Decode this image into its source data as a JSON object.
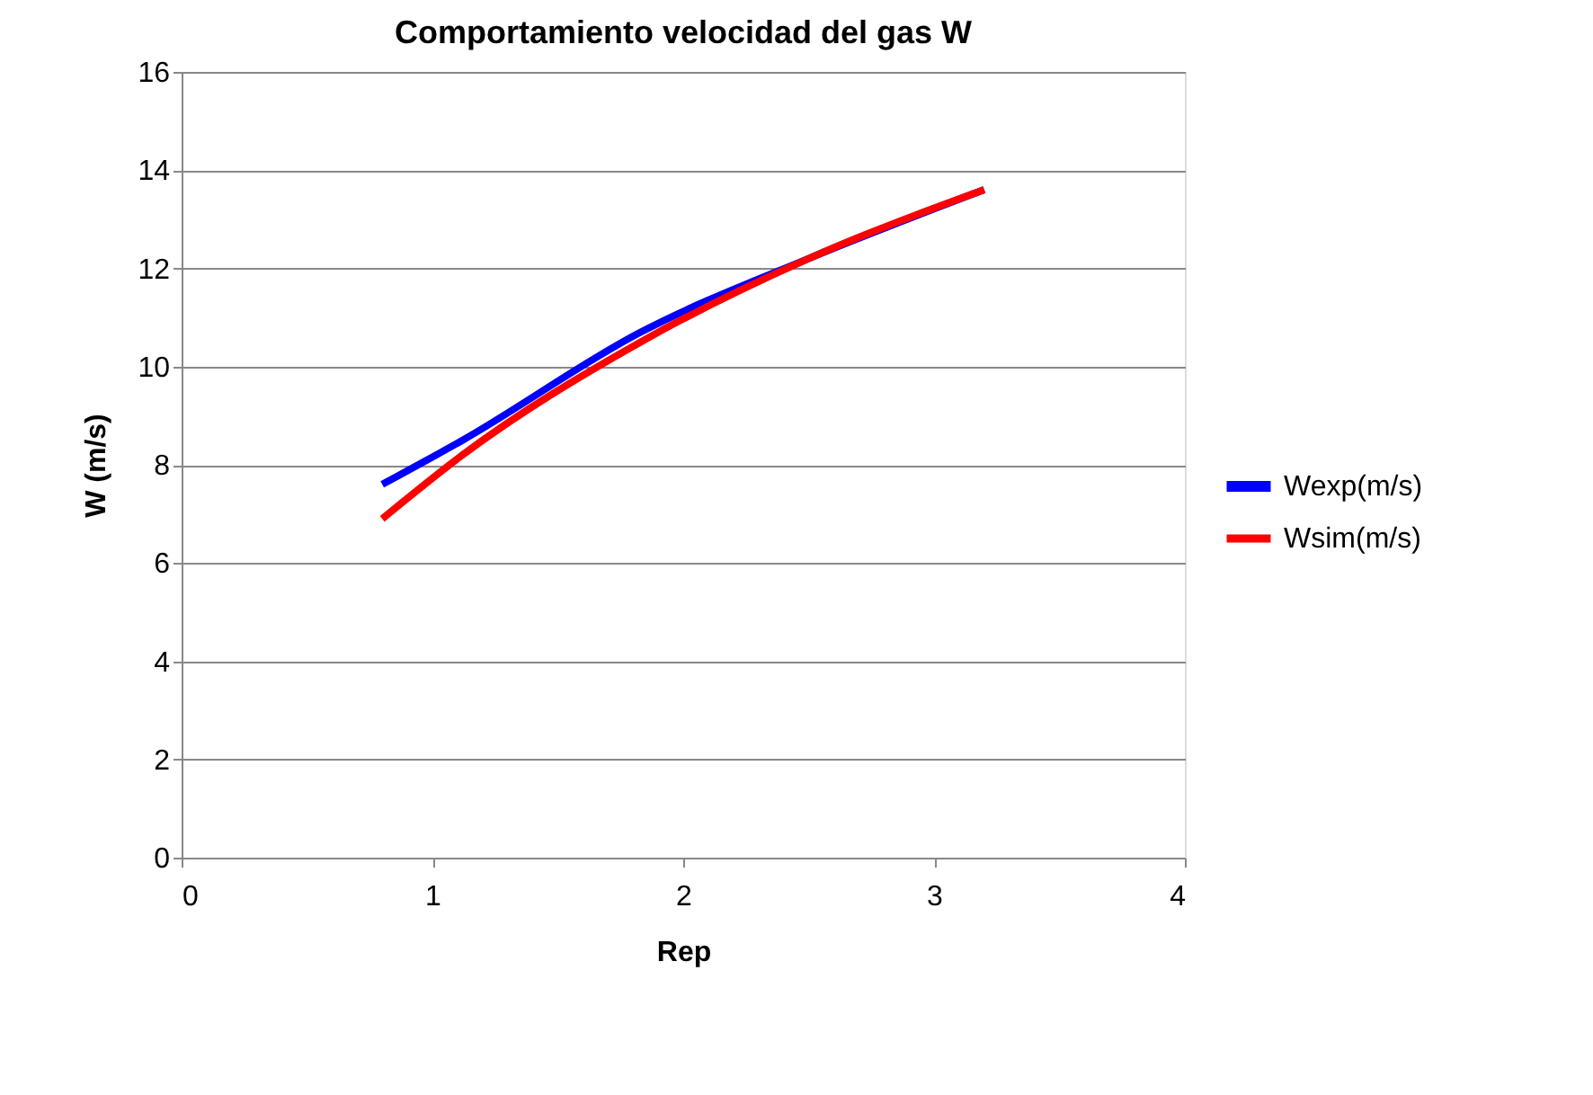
{
  "chart_data": {
    "type": "line",
    "title": "Comportamiento velocidad del gas W",
    "xlabel": "Rep",
    "ylabel": "W (m/s)",
    "xlim": [
      0,
      4
    ],
    "xticks": [
      0,
      1,
      2,
      3,
      4
    ],
    "ylim": [
      0,
      16
    ],
    "yticks": [
      0,
      2,
      4,
      6,
      8,
      10,
      12,
      14,
      16
    ],
    "grid": "y",
    "legend": "right",
    "marker": "none",
    "line_style": "solid",
    "series": [
      {
        "name": "Wexp(m/s)",
        "color": "#0000ff",
        "x": [
          0.8,
          1.12,
          1.83,
          2.5,
          3.2
        ],
        "values": [
          7.6,
          8.5,
          10.7,
          12.2,
          13.6
        ]
      },
      {
        "name": "Wsim(m/s)",
        "color": "#ff0000",
        "x": [
          0.8,
          1.12,
          1.83,
          2.5,
          3.2
        ],
        "values": [
          6.9,
          8.2,
          10.5,
          12.2,
          13.6
        ]
      }
    ]
  }
}
